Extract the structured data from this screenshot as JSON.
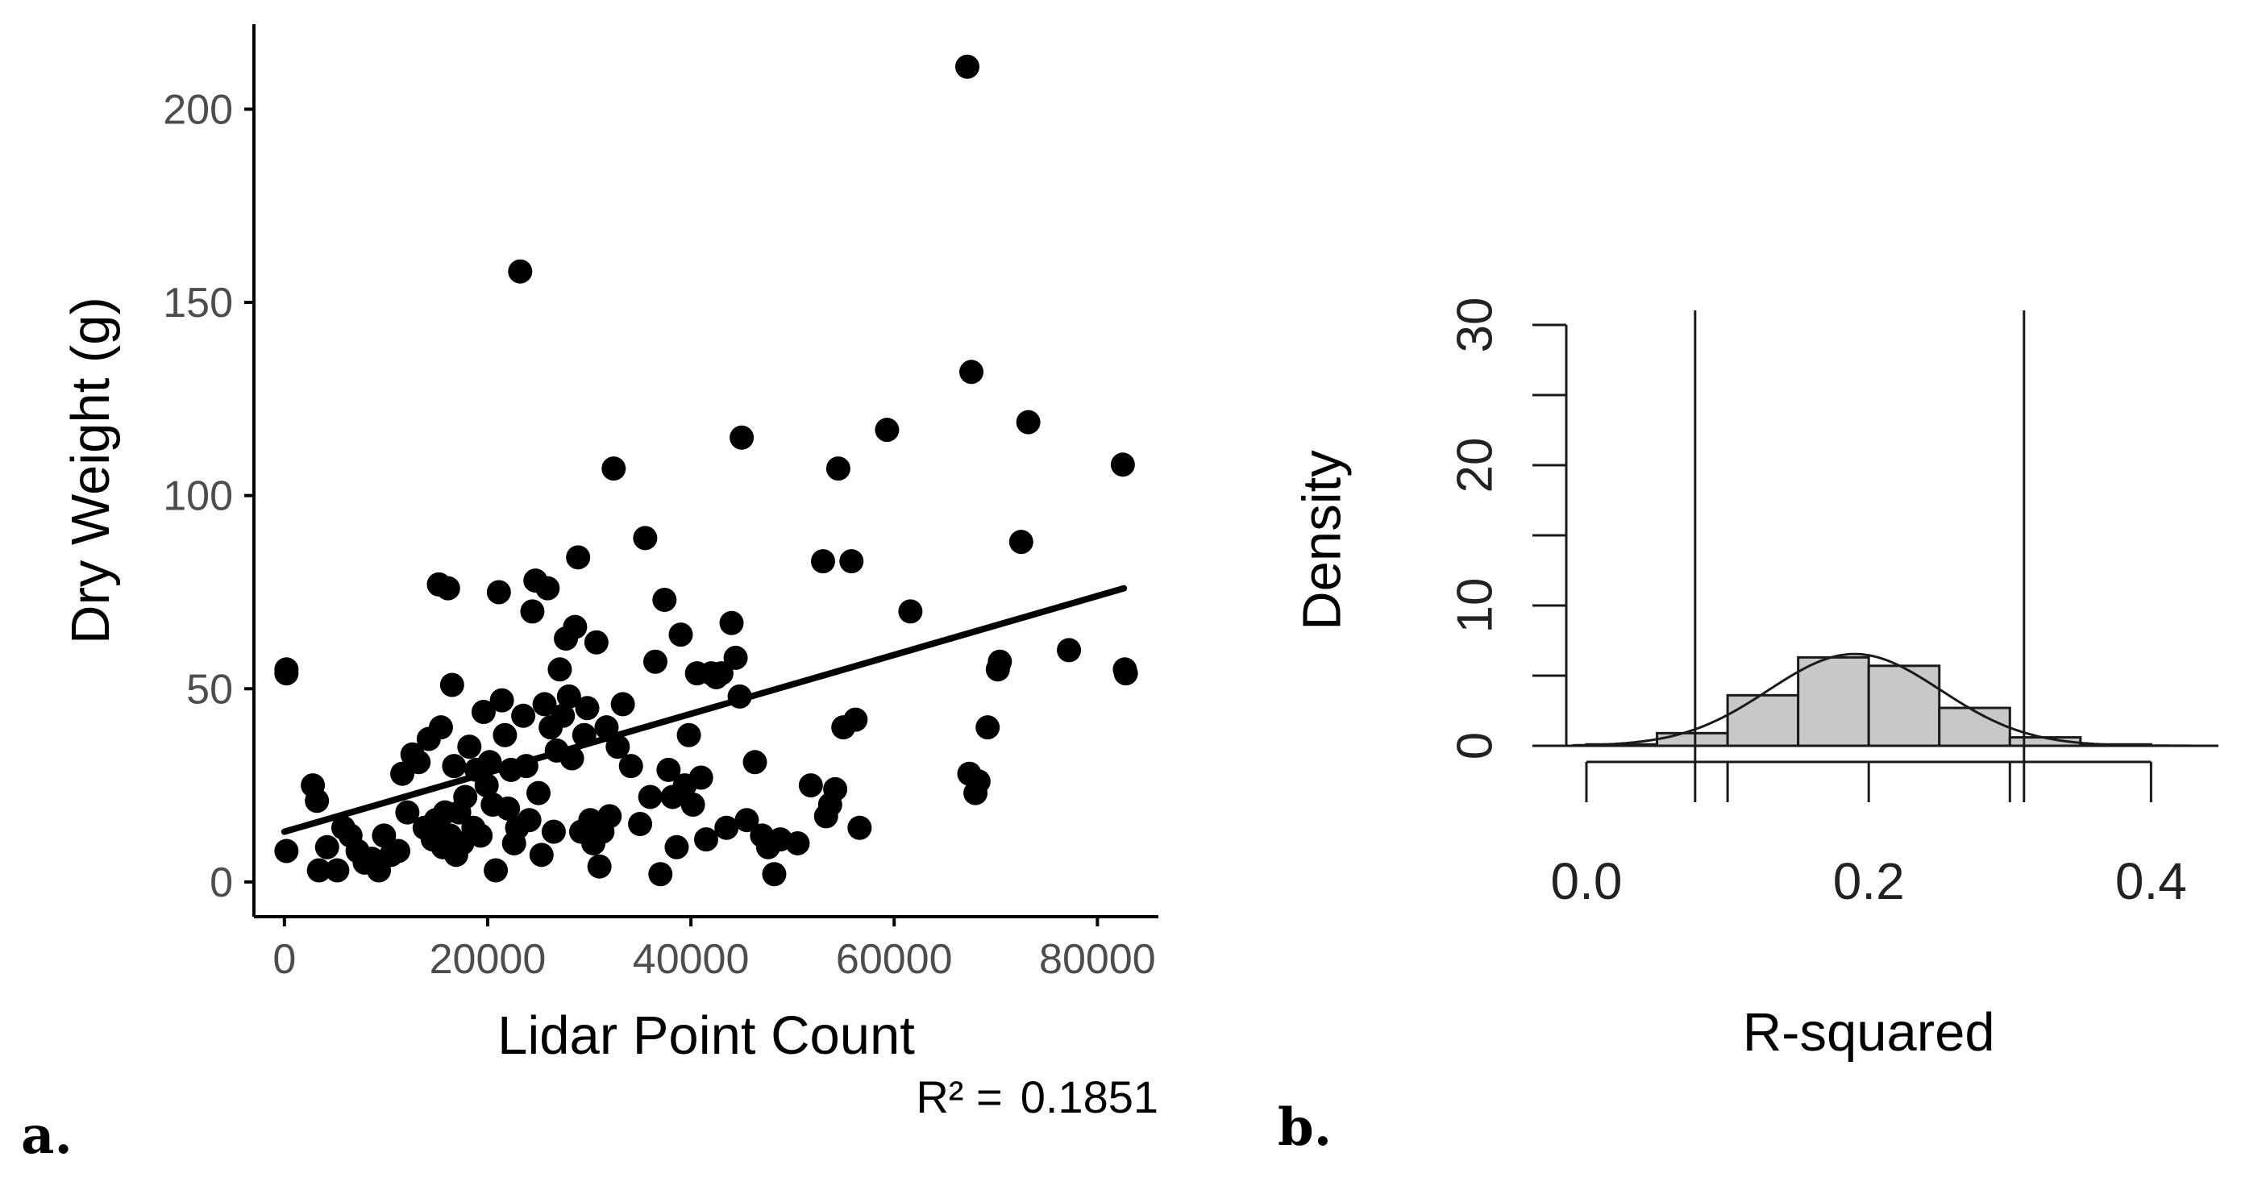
{
  "panels": {
    "a": {
      "label": "a.",
      "annotation_prefix": "R² =",
      "annotation_value": "0.1851"
    },
    "b": {
      "label": "b."
    }
  },
  "chart_data": [
    {
      "type": "scatter",
      "title": "",
      "xlabel": "Lidar Point Count",
      "ylabel": "Dry Weight (g)",
      "xlim": [
        -3000,
        86000
      ],
      "ylim": [
        -9,
        222
      ],
      "xticks": [
        0,
        20000,
        40000,
        60000,
        80000
      ],
      "yticks": [
        0,
        50,
        100,
        150,
        200
      ],
      "grid": false,
      "fit_line": {
        "x0": 0,
        "y0": 13,
        "x1": 82600,
        "y1": 76
      },
      "annotation": "R² = 0.1851",
      "points": [
        [
          200,
          55
        ],
        [
          200,
          54
        ],
        [
          200,
          8
        ],
        [
          2800,
          25
        ],
        [
          3200,
          21
        ],
        [
          3400,
          3
        ],
        [
          4200,
          9
        ],
        [
          5200,
          3
        ],
        [
          5800,
          14
        ],
        [
          6500,
          12
        ],
        [
          7200,
          8
        ],
        [
          7900,
          5
        ],
        [
          8600,
          6
        ],
        [
          9300,
          3
        ],
        [
          9800,
          12
        ],
        [
          10500,
          7
        ],
        [
          11200,
          8
        ],
        [
          11600,
          28
        ],
        [
          12100,
          18
        ],
        [
          12600,
          33
        ],
        [
          13200,
          31
        ],
        [
          13800,
          14
        ],
        [
          14200,
          37
        ],
        [
          14600,
          11
        ],
        [
          14900,
          16
        ],
        [
          15200,
          77
        ],
        [
          15400,
          40
        ],
        [
          15600,
          9
        ],
        [
          15800,
          18
        ],
        [
          16100,
          76
        ],
        [
          16300,
          12
        ],
        [
          16500,
          51
        ],
        [
          16700,
          30
        ],
        [
          16900,
          7
        ],
        [
          17200,
          18
        ],
        [
          17500,
          10
        ],
        [
          17800,
          22
        ],
        [
          18200,
          35
        ],
        [
          18600,
          14
        ],
        [
          18900,
          29
        ],
        [
          19300,
          12
        ],
        [
          19600,
          44
        ],
        [
          19900,
          25
        ],
        [
          20200,
          31
        ],
        [
          20500,
          20
        ],
        [
          20800,
          3
        ],
        [
          21100,
          75
        ],
        [
          21400,
          47
        ],
        [
          21700,
          38
        ],
        [
          22000,
          19
        ],
        [
          22300,
          29
        ],
        [
          22600,
          10
        ],
        [
          22900,
          14
        ],
        [
          23200,
          158
        ],
        [
          23500,
          43
        ],
        [
          23800,
          30
        ],
        [
          24100,
          16
        ],
        [
          24400,
          70
        ],
        [
          24700,
          78
        ],
        [
          25000,
          23
        ],
        [
          25300,
          7
        ],
        [
          25600,
          46
        ],
        [
          25900,
          76
        ],
        [
          26200,
          40
        ],
        [
          26500,
          13
        ],
        [
          26800,
          34
        ],
        [
          27100,
          55
        ],
        [
          27400,
          43
        ],
        [
          27700,
          63
        ],
        [
          28000,
          48
        ],
        [
          28300,
          32
        ],
        [
          28600,
          66
        ],
        [
          28900,
          84
        ],
        [
          29200,
          13
        ],
        [
          29500,
          38
        ],
        [
          29800,
          45
        ],
        [
          30100,
          16
        ],
        [
          30400,
          10
        ],
        [
          30700,
          62
        ],
        [
          31000,
          4
        ],
        [
          31300,
          13
        ],
        [
          31700,
          40
        ],
        [
          32000,
          17
        ],
        [
          32400,
          107
        ],
        [
          32800,
          35
        ],
        [
          33300,
          46
        ],
        [
          34100,
          30
        ],
        [
          35000,
          15
        ],
        [
          35500,
          89
        ],
        [
          36000,
          22
        ],
        [
          36500,
          57
        ],
        [
          37000,
          2
        ],
        [
          37400,
          73
        ],
        [
          37800,
          29
        ],
        [
          38200,
          22
        ],
        [
          38600,
          9
        ],
        [
          39000,
          64
        ],
        [
          39400,
          25
        ],
        [
          39800,
          38
        ],
        [
          40200,
          20
        ],
        [
          40600,
          54
        ],
        [
          41000,
          27
        ],
        [
          41500,
          11
        ],
        [
          42000,
          54
        ],
        [
          42500,
          53
        ],
        [
          43000,
          54
        ],
        [
          43500,
          14
        ],
        [
          44000,
          67
        ],
        [
          44400,
          58
        ],
        [
          44800,
          48
        ],
        [
          45000,
          115
        ],
        [
          45500,
          16
        ],
        [
          46300,
          31
        ],
        [
          47000,
          12
        ],
        [
          47600,
          9
        ],
        [
          48200,
          2
        ],
        [
          48800,
          11
        ],
        [
          50500,
          10
        ],
        [
          51800,
          25
        ],
        [
          53000,
          83
        ],
        [
          53300,
          17
        ],
        [
          53700,
          20
        ],
        [
          54200,
          24
        ],
        [
          54500,
          107
        ],
        [
          55000,
          40
        ],
        [
          55800,
          83
        ],
        [
          56200,
          42
        ],
        [
          56600,
          14
        ],
        [
          59300,
          117
        ],
        [
          61600,
          70
        ],
        [
          67200,
          211
        ],
        [
          67600,
          132
        ],
        [
          67400,
          28
        ],
        [
          68000,
          23
        ],
        [
          68300,
          26
        ],
        [
          69200,
          40
        ],
        [
          70200,
          55
        ],
        [
          70400,
          57
        ],
        [
          72500,
          88
        ],
        [
          73200,
          119
        ],
        [
          77200,
          60
        ],
        [
          82500,
          108
        ],
        [
          82700,
          55
        ],
        [
          82800,
          54
        ]
      ]
    },
    {
      "type": "histogram",
      "title": "",
      "xlabel": "R-squared",
      "ylabel": "Density",
      "xlim": [
        -0.01,
        0.45
      ],
      "ylim": [
        0,
        30
      ],
      "xticks": [
        "0.0",
        "0.2",
        "0.4"
      ],
      "xtick_values": [
        0.0,
        0.2,
        0.4
      ],
      "yticks": [
        "0",
        "10",
        "20",
        "30"
      ],
      "ytick_values": [
        0,
        10,
        20,
        30
      ],
      "grid": false,
      "bin_edges": [
        0.0,
        0.05,
        0.1,
        0.15,
        0.2,
        0.25,
        0.3,
        0.35,
        0.4
      ],
      "densities": [
        0.1,
        0.9,
        3.6,
        6.3,
        5.7,
        2.7,
        0.6,
        0.1
      ],
      "density_curve": {
        "mean": 0.19,
        "sd": 0.061
      },
      "vlines": [
        0.077,
        0.31
      ]
    }
  ]
}
